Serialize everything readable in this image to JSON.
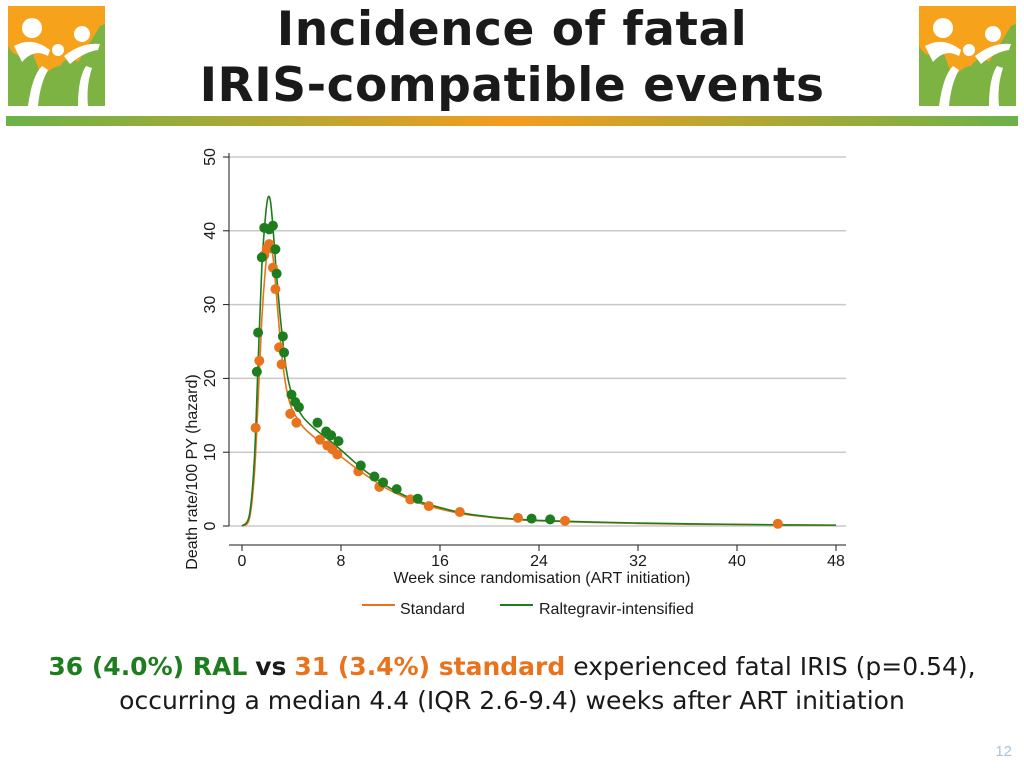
{
  "title": {
    "line1": "Incidence of fatal",
    "line2": "IRIS-compatible events"
  },
  "colors": {
    "standard": "#e8731c",
    "raltegravir": "#1e7d1e",
    "rule_green": "#6bb24a",
    "rule_orange": "#f39c1f",
    "logo_green": "#7cb342",
    "logo_orange": "#f6a21b"
  },
  "logos": {
    "left": "family-logo-icon",
    "right": "family-logo-icon"
  },
  "chart_data": {
    "type": "line",
    "xlabel": "Week since randomisation (ART initiation)",
    "ylabel": "Death rate/100 PY (hazard)",
    "xlim": [
      0,
      48
    ],
    "ylim": [
      0,
      50
    ],
    "xticks": [
      0,
      8,
      16,
      24,
      32,
      40,
      48
    ],
    "yticks": [
      0,
      10,
      20,
      30,
      40,
      50
    ],
    "grid": true,
    "legend_position": "bottom",
    "series": [
      {
        "name": "Standard",
        "color": "#e8731c",
        "curve": {
          "x": [
            0,
            0.6,
            1.0,
            1.3,
            1.6,
            1.9,
            2.1,
            2.3,
            2.5,
            2.7,
            3.0,
            3.3,
            3.6,
            4.0,
            4.5,
            5,
            6,
            7,
            8,
            9,
            10,
            11,
            12,
            14,
            16,
            18,
            20,
            22,
            24,
            28,
            32,
            36,
            40,
            44,
            48
          ],
          "y": [
            0,
            1,
            7,
            17,
            28,
            35,
            37.5,
            38,
            36.5,
            33,
            27,
            22,
            18.5,
            16,
            14.5,
            13.3,
            11.8,
            10.6,
            9.4,
            8.1,
            6.9,
            5.8,
            4.8,
            3.3,
            2.3,
            1.6,
            1.2,
            0.9,
            0.7,
            0.5,
            0.35,
            0.25,
            0.2,
            0.15,
            0.1
          ]
        },
        "points": {
          "x": [
            1.1,
            1.4,
            1.8,
            2.0,
            2.2,
            2.3,
            2.5,
            2.7,
            3.0,
            3.2,
            3.9,
            4.4,
            6.3,
            6.9,
            7.3,
            7.7,
            9.4,
            11.1,
            13.6,
            15.1,
            17.6,
            22.3,
            26.1,
            43.3
          ],
          "y": [
            13.3,
            22.4,
            36.7,
            37.6,
            38.2,
            37.6,
            35.0,
            32.1,
            24.2,
            21.9,
            15.2,
            14.0,
            11.7,
            10.9,
            10.4,
            9.7,
            7.4,
            5.3,
            3.6,
            2.7,
            1.9,
            1.1,
            0.7,
            0.3
          ]
        }
      },
      {
        "name": "Raltegravir-intensified",
        "color": "#1e7d1e",
        "curve": {
          "x": [
            0,
            0.6,
            1.0,
            1.3,
            1.6,
            1.9,
            2.1,
            2.3,
            2.5,
            2.7,
            3.0,
            3.3,
            3.6,
            4.0,
            4.5,
            5,
            6,
            7,
            8,
            9,
            10,
            11,
            12,
            14,
            16,
            18,
            20,
            22,
            24,
            28,
            32,
            36,
            40,
            44,
            48
          ],
          "y": [
            0,
            1.5,
            9,
            22,
            35,
            42,
            44.5,
            44,
            40.5,
            36,
            30,
            25,
            21,
            18,
            16,
            14.6,
            13,
            11.7,
            10.3,
            8.8,
            7.4,
            6.2,
            5.1,
            3.5,
            2.5,
            1.7,
            1.25,
            0.95,
            0.75,
            0.55,
            0.4,
            0.3,
            0.22,
            0.15,
            0.12
          ]
        },
        "points": {
          "x": [
            1.2,
            1.3,
            1.6,
            1.8,
            2.2,
            2.5,
            2.7,
            2.8,
            3.3,
            3.4,
            4.0,
            4.3,
            4.6,
            6.1,
            6.8,
            7.2,
            7.8,
            9.6,
            10.7,
            11.4,
            12.5,
            14.2,
            23.4,
            24.9
          ],
          "y": [
            20.9,
            26.2,
            36.4,
            40.4,
            40.2,
            40.7,
            37.5,
            34.2,
            25.7,
            23.5,
            17.8,
            16.8,
            16.1,
            14.0,
            12.8,
            12.3,
            11.5,
            8.2,
            6.7,
            5.9,
            5.0,
            3.7,
            1.0,
            0.9
          ]
        }
      }
    ]
  },
  "footer": {
    "ral": "36 (4.0%) RAL",
    "vs": "vs",
    "standard": "31 (3.4%) standard",
    "rest_line1": "experienced fatal IRIS (p=0.54),",
    "line2": "occurring a median 4.4 (IQR 2.6-9.4) weeks after ART initiation"
  },
  "page_number": "12"
}
